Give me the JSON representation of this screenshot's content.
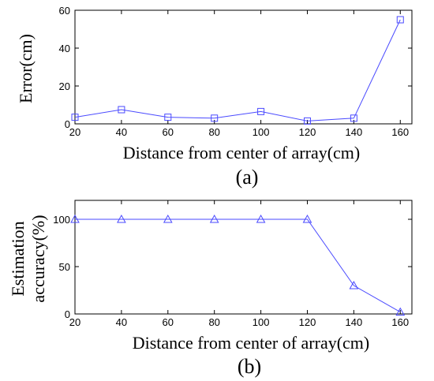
{
  "chart_data": [
    {
      "type": "line",
      "panel": "(a)",
      "caption": "(a)",
      "xlabel": "Distance from center of array(cm)",
      "ylabel": "Error(cm)",
      "x": [
        20,
        40,
        60,
        80,
        100,
        120,
        140,
        160
      ],
      "xlim": [
        20,
        165
      ],
      "ylim": [
        0,
        60
      ],
      "xticks": [
        20,
        40,
        60,
        80,
        100,
        120,
        140,
        160
      ],
      "yticks": [
        0,
        20,
        40,
        60
      ],
      "marker": "square",
      "color": "#4a4aff",
      "series": [
        {
          "values": [
            3.5,
            7.5,
            3.5,
            3.0,
            6.5,
            1.5,
            3.0,
            55.0
          ]
        }
      ]
    },
    {
      "type": "line",
      "panel": "(b)",
      "caption": "(b)",
      "xlabel": "Distance from center of array(cm)",
      "ylabel": [
        "Estimation",
        "accuracy(%)"
      ],
      "x": [
        20,
        40,
        60,
        80,
        100,
        120,
        140,
        160
      ],
      "xlim": [
        20,
        165
      ],
      "ylim": [
        0,
        120
      ],
      "xticks": [
        20,
        40,
        60,
        80,
        100,
        120,
        140,
        160
      ],
      "yticks": [
        0,
        50,
        100
      ],
      "marker": "triangle",
      "color": "#4a4aff",
      "series": [
        {
          "values": [
            100,
            100,
            100,
            100,
            100,
            100,
            30,
            2
          ]
        }
      ]
    }
  ]
}
